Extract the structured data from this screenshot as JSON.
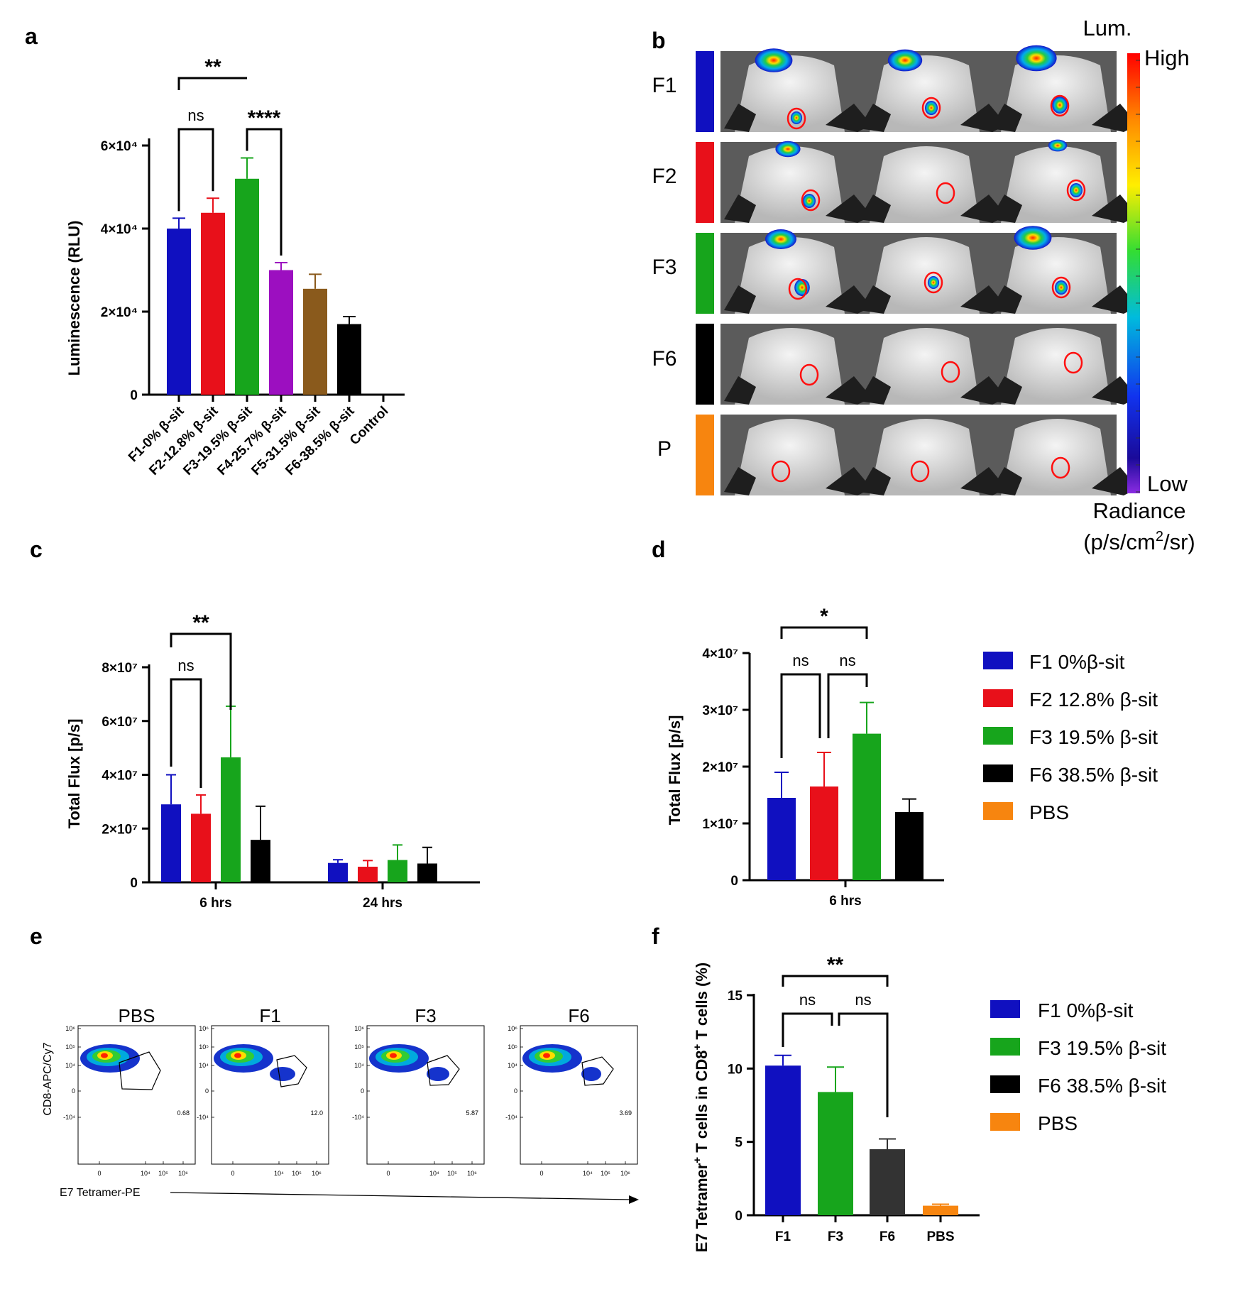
{
  "panels": {
    "a": "a",
    "b": "b",
    "c": "c",
    "d": "d",
    "e": "e",
    "f": "f"
  },
  "chart_data": [
    {
      "id": "a",
      "type": "bar",
      "ylabel": "Luminescence (RLU)",
      "ylim": [
        0,
        60000
      ],
      "yticks": [
        "0",
        "2×10⁴",
        "4×10⁴",
        "6×10⁴"
      ],
      "categories": [
        "F1-0% β-sit",
        "F2-12.8% β-sit",
        "F3-19.5% β-sit",
        "F4-25.7% β-sit",
        "F5-31.5% β-sit",
        "F6-38.5% β-sit",
        "Control"
      ],
      "values": [
        40000,
        43800,
        52000,
        30000,
        25500,
        17000,
        0
      ],
      "errors": [
        2500,
        3500,
        5000,
        1800,
        3500,
        1800,
        0
      ],
      "colors": [
        "#1010c0",
        "#e8101a",
        "#17a51c",
        "#9c0fc0",
        "#8a5a1c",
        "#000000",
        "#000000"
      ],
      "significance": [
        {
          "label": "**",
          "from": 0,
          "to": 2
        },
        {
          "label": "ns",
          "from": 0,
          "to": 1
        },
        {
          "label": "****",
          "from": 2,
          "to": 3
        }
      ]
    },
    {
      "id": "b",
      "type": "image-grid",
      "rows": [
        "F1",
        "F2",
        "F3",
        "F6",
        "P"
      ],
      "row_colors": [
        "#1010c0",
        "#e8101a",
        "#17a51c",
        "#000000",
        "#f7850f"
      ],
      "colorbar": {
        "title": "Lum.",
        "high": "High",
        "low": "Low",
        "unit_line1": "Radiance",
        "unit_line2": "(p/s/cm²/sr)"
      }
    },
    {
      "id": "c",
      "type": "bar",
      "ylabel": "Total Flux [p/s]",
      "ylim": [
        0,
        80000000
      ],
      "yticks": [
        "0",
        "2×10⁷",
        "4×10⁷",
        "6×10⁷",
        "8×10⁷"
      ],
      "categories": [
        "6 hrs",
        "24 hrs"
      ],
      "series": [
        {
          "color": "#1010c0",
          "values": [
            29000000,
            7200000
          ],
          "errors": [
            11000000,
            1200000
          ]
        },
        {
          "color": "#e8101a",
          "values": [
            25500000,
            5800000
          ],
          "errors": [
            7000000,
            2300000
          ]
        },
        {
          "color": "#17a51c",
          "values": [
            46500000,
            8300000
          ],
          "errors": [
            19000000,
            5600000
          ]
        },
        {
          "color": "#000000",
          "values": [
            15800000,
            7000000
          ],
          "errors": [
            12500000,
            6000000
          ]
        }
      ],
      "significance": [
        {
          "label": "**",
          "from": 0,
          "to": 2
        },
        {
          "label": "ns",
          "from": 0,
          "to": 1
        }
      ]
    },
    {
      "id": "d",
      "type": "bar",
      "ylabel": "Total Flux [p/s]",
      "ylim": [
        0,
        40000000
      ],
      "yticks": [
        "0",
        "1×10⁷",
        "2×10⁷",
        "3×10⁷",
        "4×10⁷"
      ],
      "categories": [
        "6 hrs"
      ],
      "series": [
        {
          "name": "F1 0%β-sit",
          "color": "#1010c0",
          "values": [
            14500000
          ],
          "errors": [
            4500000
          ]
        },
        {
          "name": "F2 12.8% β-sit",
          "color": "#e8101a",
          "values": [
            16500000
          ],
          "errors": [
            6000000
          ]
        },
        {
          "name": "F3 19.5% β-sit",
          "color": "#17a51c",
          "values": [
            25800000
          ],
          "errors": [
            5500000
          ]
        },
        {
          "name": "F6 38.5% β-sit",
          "color": "#000000",
          "values": [
            12000000
          ],
          "errors": [
            2300000
          ]
        },
        {
          "name": "PBS",
          "color": "#f7850f",
          "values": [
            0
          ],
          "errors": [
            0
          ]
        }
      ],
      "significance": [
        {
          "label": "*",
          "from": 0,
          "to": 2
        },
        {
          "label": "ns",
          "from": 0,
          "to": 1
        },
        {
          "label": "ns",
          "from": 1,
          "to": 2
        }
      ]
    },
    {
      "id": "e",
      "type": "flow-cytometry",
      "samples": [
        "PBS",
        "F1",
        "F3",
        "F6"
      ],
      "gate_values": [
        "0.68",
        "12.0",
        "5.87",
        "3.69"
      ],
      "ylabel": "CD8-APC/Cy7",
      "xlabel": "E7 Tetramer-PE",
      "yticks": [
        "10⁶",
        "10⁵",
        "10⁴",
        "0",
        "-10⁴"
      ],
      "xticks": [
        "0",
        "10⁴",
        "10⁵",
        "10⁶"
      ]
    },
    {
      "id": "f",
      "type": "bar",
      "ylabel": "E7 Tetramer⁺ T cells in CD8⁺ T cells (%)",
      "ylim": [
        0,
        15
      ],
      "yticks": [
        "0",
        "5",
        "10",
        "15"
      ],
      "categories": [
        "F1",
        "F3",
        "F6",
        "PBS"
      ],
      "values": [
        10.2,
        8.4,
        4.5,
        0.65
      ],
      "errors": [
        0.7,
        1.7,
        0.7,
        0.1
      ],
      "colors": [
        "#1010c0",
        "#17a51c",
        "#333333",
        "#f7850f"
      ],
      "legend": [
        {
          "name": "F1 0%β-sit",
          "color": "#1010c0"
        },
        {
          "name": "F3 19.5% β-sit",
          "color": "#17a51c"
        },
        {
          "name": "F6 38.5% β-sit",
          "color": "#000000"
        },
        {
          "name": "PBS",
          "color": "#f7850f"
        }
      ],
      "significance": [
        {
          "label": "**",
          "from": 0,
          "to": 2
        },
        {
          "label": "ns",
          "from": 0,
          "to": 1
        },
        {
          "label": "ns",
          "from": 1,
          "to": 2
        }
      ]
    }
  ]
}
